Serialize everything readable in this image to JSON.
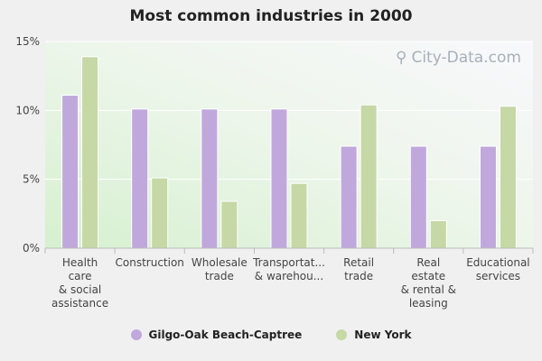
{
  "chart_data": {
    "type": "bar",
    "title": "Most common industries in 2000",
    "categories": [
      [
        "Health",
        "care",
        "& social",
        "assistance"
      ],
      [
        "Construction"
      ],
      [
        "Wholesale",
        "trade"
      ],
      [
        "Transportat...",
        "& warehou..."
      ],
      [
        "Retail",
        "trade"
      ],
      [
        "Real",
        "estate",
        "& rental &",
        "leasing"
      ],
      [
        "Educational",
        "services"
      ]
    ],
    "series": [
      {
        "name": "Gilgo-Oak Beach-Captree",
        "color": "#c0a8dc",
        "values": [
          11.1,
          10.1,
          10.1,
          10.1,
          7.4,
          7.4,
          7.4
        ]
      },
      {
        "name": "New York",
        "color": "#c6d8a6",
        "values": [
          13.9,
          5.1,
          3.4,
          4.7,
          10.4,
          2.0,
          10.3
        ]
      }
    ],
    "ylim": [
      0,
      15
    ],
    "yticks": [
      0,
      5,
      10,
      15
    ],
    "ytick_labels": [
      "0%",
      "5%",
      "10%",
      "15%"
    ],
    "grid": true,
    "legend_position": "bottom"
  },
  "watermark": "City-Data.com"
}
